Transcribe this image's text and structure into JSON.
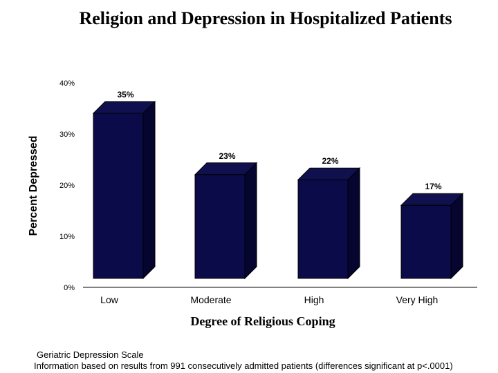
{
  "chart_data": {
    "type": "bar",
    "title": "Religion and Depression in Hospitalized Patients",
    "xlabel": "Degree of Religious Coping",
    "ylabel": "Percent Depressed",
    "categories": [
      "Low",
      "Moderate",
      "High",
      "Very High"
    ],
    "values": [
      35,
      23,
      22,
      17
    ],
    "data_labels": [
      "35%",
      "23%",
      "22%",
      "17%"
    ],
    "yticks": [
      "0%",
      "10%",
      "20%",
      "30%",
      "40%"
    ],
    "ytick_values": [
      0,
      10,
      20,
      30,
      40
    ],
    "ylim": [
      0,
      40
    ],
    "grid": false,
    "bar_color": "#0b0b4a",
    "bar_side_color": "#050530",
    "bar_top_color": "#10104f"
  },
  "footnotes": {
    "line1": "Geriatric Depression Scale",
    "line2": "Information based on results from 991 consecutively admitted patients (differences significant at p<.0001)"
  }
}
